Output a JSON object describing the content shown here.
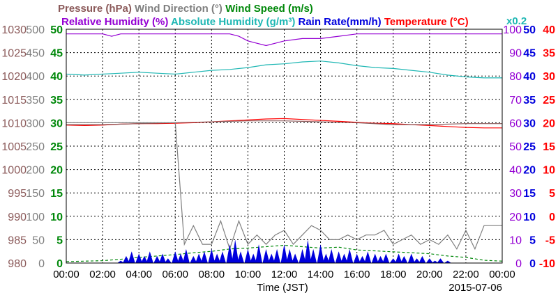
{
  "chart_data": {
    "type": "line",
    "date": "2015-07-06",
    "title_lines": [
      [
        {
          "text": "Pressure (hPa)",
          "color": "#8b5a5a"
        },
        {
          "text": "Wind Direction (°)",
          "color": "#7f7f7f"
        },
        {
          "text": "Wind Speed (m/s)",
          "color": "#00880a"
        }
      ],
      [
        {
          "text": "Relative Humidity (%)",
          "color": "#9400d3"
        },
        {
          "text": "Absolute Humidity (g/m³)",
          "color": "#1fb7b4"
        },
        {
          "text": "Rain Rate(mm/h)",
          "color": "#0000dd"
        },
        {
          "text": "Temperature (°C)",
          "color": "#ff0000"
        }
      ]
    ],
    "x0.2_note": "x0.2",
    "xlabel": "Time (JST)",
    "x_ticks": [
      "00:00",
      "02:00",
      "04:00",
      "06:00",
      "08:00",
      "10:00",
      "12:00",
      "14:00",
      "16:00",
      "18:00",
      "20:00",
      "22:00",
      "00:00"
    ],
    "axes": {
      "pressure": {
        "color": "#8b5a5a",
        "range": [
          980,
          1030
        ],
        "ticks": [
          980,
          985,
          990,
          995,
          1000,
          1005,
          1010,
          1015,
          1020,
          1025,
          1030
        ]
      },
      "wind_direction": {
        "color": "#7f7f7f",
        "range": [
          0,
          500
        ],
        "ticks": [
          0,
          50,
          100,
          150,
          200,
          250,
          300,
          350,
          400,
          450,
          500
        ]
      },
      "wind_speed": {
        "color": "#00880a",
        "range": [
          0,
          50
        ],
        "ticks": [
          0,
          5,
          10,
          15,
          20,
          25,
          30,
          35,
          40,
          45,
          50
        ]
      },
      "relative_humidity": {
        "color": "#9400d3",
        "range": [
          0,
          100
        ],
        "ticks": [
          0,
          10,
          20,
          30,
          40,
          50,
          60,
          70,
          80,
          90,
          100
        ]
      },
      "rain_rate": {
        "color": "#0000dd",
        "range": [
          0,
          50
        ],
        "ticks": [
          0,
          5,
          10,
          15,
          20,
          25,
          30,
          35,
          40,
          45,
          50
        ]
      },
      "temperature": {
        "color": "#ff0000",
        "range": [
          -10,
          40
        ],
        "ticks": [
          -10,
          -5,
          0,
          5,
          10,
          15,
          20,
          25,
          30,
          35,
          40
        ]
      }
    },
    "series": [
      {
        "name": "Relative Humidity (%)",
        "axis": "relative_humidity",
        "color": "#9400d3",
        "x": [
          0,
          1,
          2,
          2.5,
          3,
          4,
          5,
          6,
          7,
          8,
          9,
          9.5,
          10,
          10.5,
          11,
          11.5,
          12,
          13,
          14,
          15,
          16,
          17,
          18,
          19,
          20,
          21,
          22,
          23,
          24
        ],
        "y": [
          98,
          98,
          98,
          97,
          98,
          98,
          98,
          98,
          98,
          98,
          98,
          97,
          95,
          94,
          93,
          94,
          95,
          96,
          96,
          97,
          98,
          98,
          98,
          98,
          98,
          98,
          98,
          98,
          98
        ]
      },
      {
        "name": "Absolute Humidity (g/m³)",
        "axis": "temperature",
        "scale_note": "x0.2",
        "color": "#1fb7b4",
        "x": [
          0,
          1,
          2,
          3,
          4,
          5,
          6,
          7,
          8,
          9,
          10,
          11,
          12,
          13,
          14,
          15,
          16,
          17,
          18,
          19,
          20,
          21,
          22,
          23,
          24
        ],
        "y": [
          30.4,
          30.2,
          30.4,
          30.6,
          30.8,
          30.6,
          30.4,
          30.8,
          31.2,
          31.4,
          31.8,
          32.4,
          32.6,
          33,
          33.2,
          32.8,
          32.2,
          31.8,
          31.6,
          31.2,
          30.8,
          30.2,
          29.8,
          29.6,
          29.6
        ]
      },
      {
        "name": "Temperature (°C)",
        "axis": "temperature",
        "color": "#ff0000",
        "x": [
          0,
          1,
          2,
          3,
          4,
          5,
          6,
          7,
          8,
          9,
          10,
          11,
          12,
          13,
          14,
          15,
          16,
          17,
          18,
          19,
          20,
          21,
          22,
          23,
          24
        ],
        "y": [
          19.5,
          19.4,
          19.5,
          19.7,
          19.8,
          19.8,
          19.9,
          20,
          20.2,
          20.4,
          20.6,
          20.8,
          20.9,
          20.7,
          20.5,
          20.3,
          20.1,
          19.9,
          19.8,
          19.6,
          19.4,
          19.2,
          19,
          18.9,
          18.9
        ]
      },
      {
        "name": "Pressure (hPa)",
        "axis": "pressure",
        "color": "#8b5a5a",
        "x": [
          0,
          2,
          4,
          6,
          8,
          10,
          12,
          14,
          16,
          18,
          20,
          22,
          24
        ],
        "y": [
          1009.6,
          1009.6,
          1009.8,
          1010,
          1010.2,
          1010.4,
          1010.4,
          1010.2,
          1010,
          1009.6,
          1009.6,
          1009.8,
          1009.8
        ]
      },
      {
        "name": "Wind Direction (°)",
        "axis": "wind_direction",
        "color": "#7f7f7f",
        "x": [
          0,
          0.5,
          1,
          1.5,
          2,
          2.5,
          3,
          3.5,
          4,
          4.5,
          5,
          5.5,
          6,
          6.5,
          7,
          7.5,
          8,
          8.5,
          9,
          9.5,
          10,
          10.5,
          11,
          11.5,
          12,
          12.5,
          13,
          13.5,
          14,
          14.5,
          15,
          15.5,
          16,
          16.5,
          17,
          17.5,
          18,
          18.5,
          19,
          19.5,
          20,
          20.5,
          21,
          21.5,
          22,
          22.5,
          23,
          23.5,
          24
        ],
        "y": [
          300,
          300,
          300,
          300,
          300,
          300,
          300,
          300,
          300,
          300,
          300,
          300,
          300,
          40,
          80,
          40,
          40,
          90,
          30,
          90,
          40,
          60,
          40,
          60,
          70,
          40,
          60,
          80,
          70,
          50,
          50,
          60,
          50,
          60,
          60,
          70,
          40,
          50,
          60,
          40,
          50,
          40,
          60,
          30,
          70,
          30,
          80,
          80,
          80
        ]
      },
      {
        "name": "Wind Speed (m/s)",
        "axis": "wind_speed",
        "color": "#00880a",
        "x": [
          0,
          1,
          2,
          3,
          4,
          5,
          6,
          7,
          8,
          9,
          10,
          11,
          12,
          13,
          14,
          15,
          16,
          17,
          18,
          19,
          20,
          21,
          22,
          23,
          24
        ],
        "y": [
          0.3,
          0.4,
          0.5,
          0.8,
          1.2,
          1.5,
          1.8,
          2.2,
          2.5,
          3,
          3.2,
          3.5,
          3.8,
          3.5,
          3.2,
          3.4,
          2.8,
          2.6,
          2.4,
          2.2,
          2,
          1.5,
          1.2,
          0.6,
          0.4
        ]
      },
      {
        "name": "Rain Rate(mm/h)",
        "axis": "rain_rate",
        "color": "#0000dd",
        "x": [
          3,
          3.3,
          3.6,
          4,
          4.3,
          4.6,
          5,
          5.3,
          5.6,
          6,
          6.3,
          6.6,
          7,
          7.3,
          7.6,
          8,
          8.3,
          8.6,
          9,
          9.3,
          9.6,
          10,
          10.3,
          10.6,
          11,
          11.3,
          11.6,
          12,
          12.3,
          12.6,
          13,
          13.3,
          13.6,
          14,
          14.3,
          14.6,
          15,
          15.3,
          15.6,
          16,
          16.3,
          16.6,
          17,
          17.3,
          17.6,
          18,
          18.3,
          18.6,
          19,
          19.3,
          19.6,
          20,
          20.3,
          20.6,
          21
        ],
        "y": [
          0.5,
          1.5,
          2.5,
          2,
          1.5,
          2.5,
          1.5,
          2,
          1,
          2.5,
          2,
          3,
          1.5,
          2,
          2.5,
          3,
          2,
          2.5,
          4,
          5,
          2.5,
          3,
          2,
          4,
          3,
          2,
          3,
          4,
          3,
          2,
          3,
          5,
          3,
          4,
          2,
          3,
          2.5,
          2,
          3,
          2,
          1.5,
          2.5,
          2,
          1.5,
          2,
          1,
          2,
          1.5,
          2,
          1,
          1.5,
          1,
          0.5,
          1,
          0.5
        ]
      }
    ]
  }
}
